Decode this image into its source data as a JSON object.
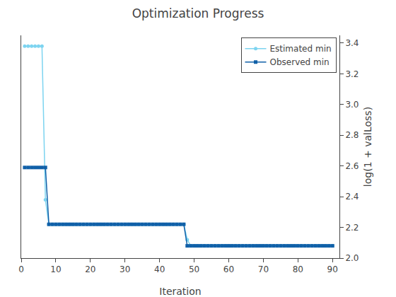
{
  "chart_data": {
    "type": "line",
    "title": "Optimization Progress",
    "x_label": "Iteration",
    "y_label": "log(1 + valLoss)",
    "xlim": [
      0,
      92
    ],
    "ylim": [
      2.0,
      3.45
    ],
    "xticks": [
      0,
      10,
      20,
      30,
      40,
      50,
      60,
      70,
      80,
      90
    ],
    "yticks": [
      {
        "value": 2.0,
        "label": "2.0"
      },
      2.2,
      2.4,
      2.6,
      2.8,
      {
        "value": 3.0,
        "label": "3.0"
      },
      3.2,
      3.4
    ],
    "grid": false,
    "legend": "upper right",
    "x": [
      1,
      2,
      3,
      4,
      5,
      6,
      7,
      8,
      9,
      10,
      11,
      12,
      13,
      14,
      15,
      16,
      17,
      18,
      19,
      20,
      21,
      22,
      23,
      24,
      25,
      26,
      27,
      28,
      29,
      30,
      31,
      32,
      33,
      34,
      35,
      36,
      37,
      38,
      39,
      40,
      41,
      42,
      43,
      44,
      45,
      46,
      47,
      48,
      49,
      50,
      51,
      52,
      53,
      54,
      55,
      56,
      57,
      58,
      59,
      60,
      61,
      62,
      63,
      64,
      65,
      66,
      67,
      68,
      69,
      70,
      71,
      72,
      73,
      74,
      75,
      76,
      77,
      78,
      79,
      80,
      81,
      82,
      83,
      84,
      85,
      86,
      87,
      88,
      89,
      90
    ],
    "series": [
      {
        "name": "Estimated min",
        "color": "#7dd4f0",
        "marker": "circle",
        "values": [
          3.38,
          3.38,
          3.38,
          3.38,
          3.38,
          3.38,
          2.38,
          2.22,
          2.22,
          2.22,
          2.22,
          2.22,
          2.22,
          2.22,
          2.22,
          2.22,
          2.22,
          2.22,
          2.22,
          2.22,
          2.22,
          2.22,
          2.22,
          2.22,
          2.22,
          2.22,
          2.22,
          2.22,
          2.22,
          2.22,
          2.22,
          2.22,
          2.22,
          2.22,
          2.22,
          2.22,
          2.22,
          2.22,
          2.22,
          2.22,
          2.22,
          2.22,
          2.22,
          2.22,
          2.22,
          2.22,
          2.22,
          2.12,
          2.08,
          2.08,
          2.08,
          2.08,
          2.08,
          2.08,
          2.08,
          2.08,
          2.08,
          2.08,
          2.08,
          2.08,
          2.08,
          2.08,
          2.08,
          2.08,
          2.08,
          2.08,
          2.08,
          2.08,
          2.08,
          2.08,
          2.08,
          2.08,
          2.08,
          2.08,
          2.08,
          2.08,
          2.08,
          2.08,
          2.08,
          2.08,
          2.08,
          2.08,
          2.08,
          2.08,
          2.08,
          2.08,
          2.08,
          2.08,
          2.08,
          2.08
        ]
      },
      {
        "name": "Observed min",
        "color": "#1060a8",
        "marker": "square",
        "values": [
          2.59,
          2.59,
          2.59,
          2.59,
          2.59,
          2.59,
          2.59,
          2.22,
          2.22,
          2.22,
          2.22,
          2.22,
          2.22,
          2.22,
          2.22,
          2.22,
          2.22,
          2.22,
          2.22,
          2.22,
          2.22,
          2.22,
          2.22,
          2.22,
          2.22,
          2.22,
          2.22,
          2.22,
          2.22,
          2.22,
          2.22,
          2.22,
          2.22,
          2.22,
          2.22,
          2.22,
          2.22,
          2.22,
          2.22,
          2.22,
          2.22,
          2.22,
          2.22,
          2.22,
          2.22,
          2.22,
          2.22,
          2.08,
          2.08,
          2.08,
          2.08,
          2.08,
          2.08,
          2.08,
          2.08,
          2.08,
          2.08,
          2.08,
          2.08,
          2.08,
          2.08,
          2.08,
          2.08,
          2.08,
          2.08,
          2.08,
          2.08,
          2.08,
          2.08,
          2.08,
          2.08,
          2.08,
          2.08,
          2.08,
          2.08,
          2.08,
          2.08,
          2.08,
          2.08,
          2.08,
          2.08,
          2.08,
          2.08,
          2.08,
          2.08,
          2.08,
          2.08,
          2.08,
          2.08,
          2.08
        ]
      }
    ]
  }
}
